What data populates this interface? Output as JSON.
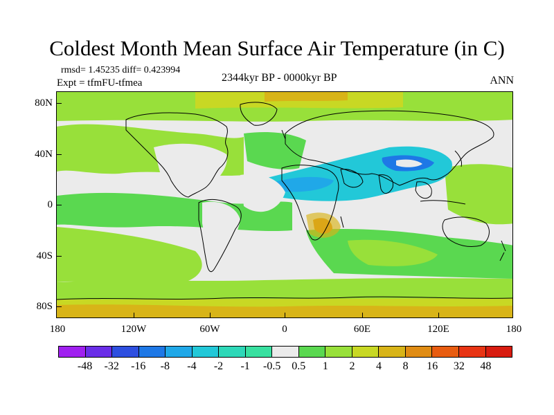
{
  "title": "Coldest Month Mean Surface Air Temperature (in C)",
  "stats": "rmsd= 1.45235  diff= 0.423994",
  "experiment": "Expt = tfmFU-tfmea",
  "period": "2344kyr BP - 0000kyr BP",
  "season": "ANN",
  "lat_labels": [
    "80N",
    "40N",
    "0",
    "40S",
    "80S"
  ],
  "lon_labels": [
    "180",
    "120W",
    "60W",
    "0",
    "60E",
    "120E",
    "180"
  ],
  "colorbar": {
    "labels": [
      "-48",
      "-32",
      "-16",
      "-8",
      "-4",
      "-2",
      "-1",
      "-0.5",
      "0.5",
      "1",
      "2",
      "4",
      "8",
      "16",
      "32",
      "48"
    ],
    "colors": [
      "#a020f0",
      "#6a2ee8",
      "#2e4fe0",
      "#1e78e6",
      "#20a8e8",
      "#22c8d8",
      "#2ed8b8",
      "#38e0a0",
      "#ebebeb",
      "#5ad850",
      "#98e03a",
      "#c8d824",
      "#d8b418",
      "#e08c14",
      "#e85c10",
      "#e83414",
      "#d81c10"
    ]
  },
  "palette": {
    "land_neutral": "#ebebeb",
    "cool": "#1eb8e0",
    "cool_deep": "#1e8ce0",
    "warm_green": "#5ad850",
    "warm_lime": "#a8dc38",
    "warm_yellow": "#d0c828",
    "warm_orange": "#e0a020"
  }
}
